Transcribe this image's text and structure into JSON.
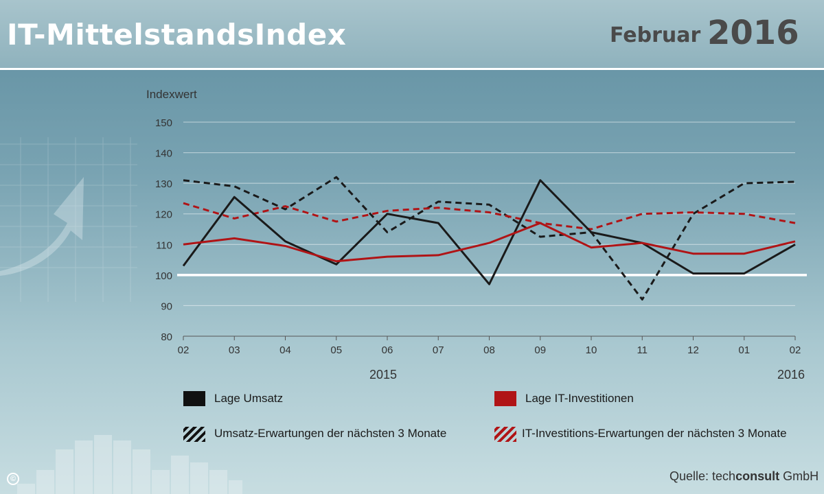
{
  "header": {
    "title": "IT-MittelstandsIndex",
    "month": "Februar",
    "year": "2016"
  },
  "colors": {
    "umsatz": "#1a1a1a",
    "investitionen": "#b01416",
    "baseline": "#ffffff"
  },
  "legend": {
    "item1": "Lage Umsatz",
    "item2": "Lage IT-Investitionen",
    "item3": "Umsatz-Erwartungen der nächsten 3 Monate",
    "item4": "IT-Investitions-Erwartungen der nächsten 3 Monate"
  },
  "source": {
    "prefix": "Quelle:  tech",
    "brand": "consult",
    "suffix": " GmbH"
  },
  "copyright": "©",
  "chart_data": {
    "type": "line",
    "ylabel": "Indexwert",
    "ylim": [
      80,
      150
    ],
    "yticks": [
      80,
      90,
      100,
      110,
      120,
      130,
      140,
      150
    ],
    "categories": [
      "02",
      "03",
      "04",
      "05",
      "06",
      "07",
      "08",
      "09",
      "10",
      "11",
      "12",
      "01",
      "02"
    ],
    "year_labels": [
      {
        "label": "2015",
        "index": 4
      },
      {
        "label": "2016",
        "index": 12
      }
    ],
    "reference_line": 100,
    "grid": true,
    "series": [
      {
        "name": "Lage Umsatz",
        "style": "solid",
        "color": "#1a1a1a",
        "values": [
          103,
          125.5,
          111,
          103.5,
          120,
          117,
          97,
          131,
          114,
          110.5,
          100.5,
          100.5,
          110
        ]
      },
      {
        "name": "Lage IT-Investitionen",
        "style": "solid",
        "color": "#b01416",
        "values": [
          110,
          112,
          109.5,
          104.5,
          106,
          106.5,
          110.5,
          117,
          109,
          110.5,
          107,
          107,
          111
        ]
      },
      {
        "name": "Umsatz-Erwartungen der nächsten 3 Monate",
        "style": "dashed",
        "color": "#1a1a1a",
        "values": [
          131,
          129,
          121.5,
          132,
          114,
          124,
          123,
          112.5,
          114,
          92,
          120,
          130,
          130.5
        ]
      },
      {
        "name": "IT-Investitions-Erwartungen der nächsten 3 Monate",
        "style": "dashed",
        "color": "#b01416",
        "values": [
          123.5,
          118.5,
          122.5,
          117.5,
          121,
          122,
          120.5,
          117,
          115,
          120,
          120.5,
          120,
          117
        ]
      }
    ]
  }
}
